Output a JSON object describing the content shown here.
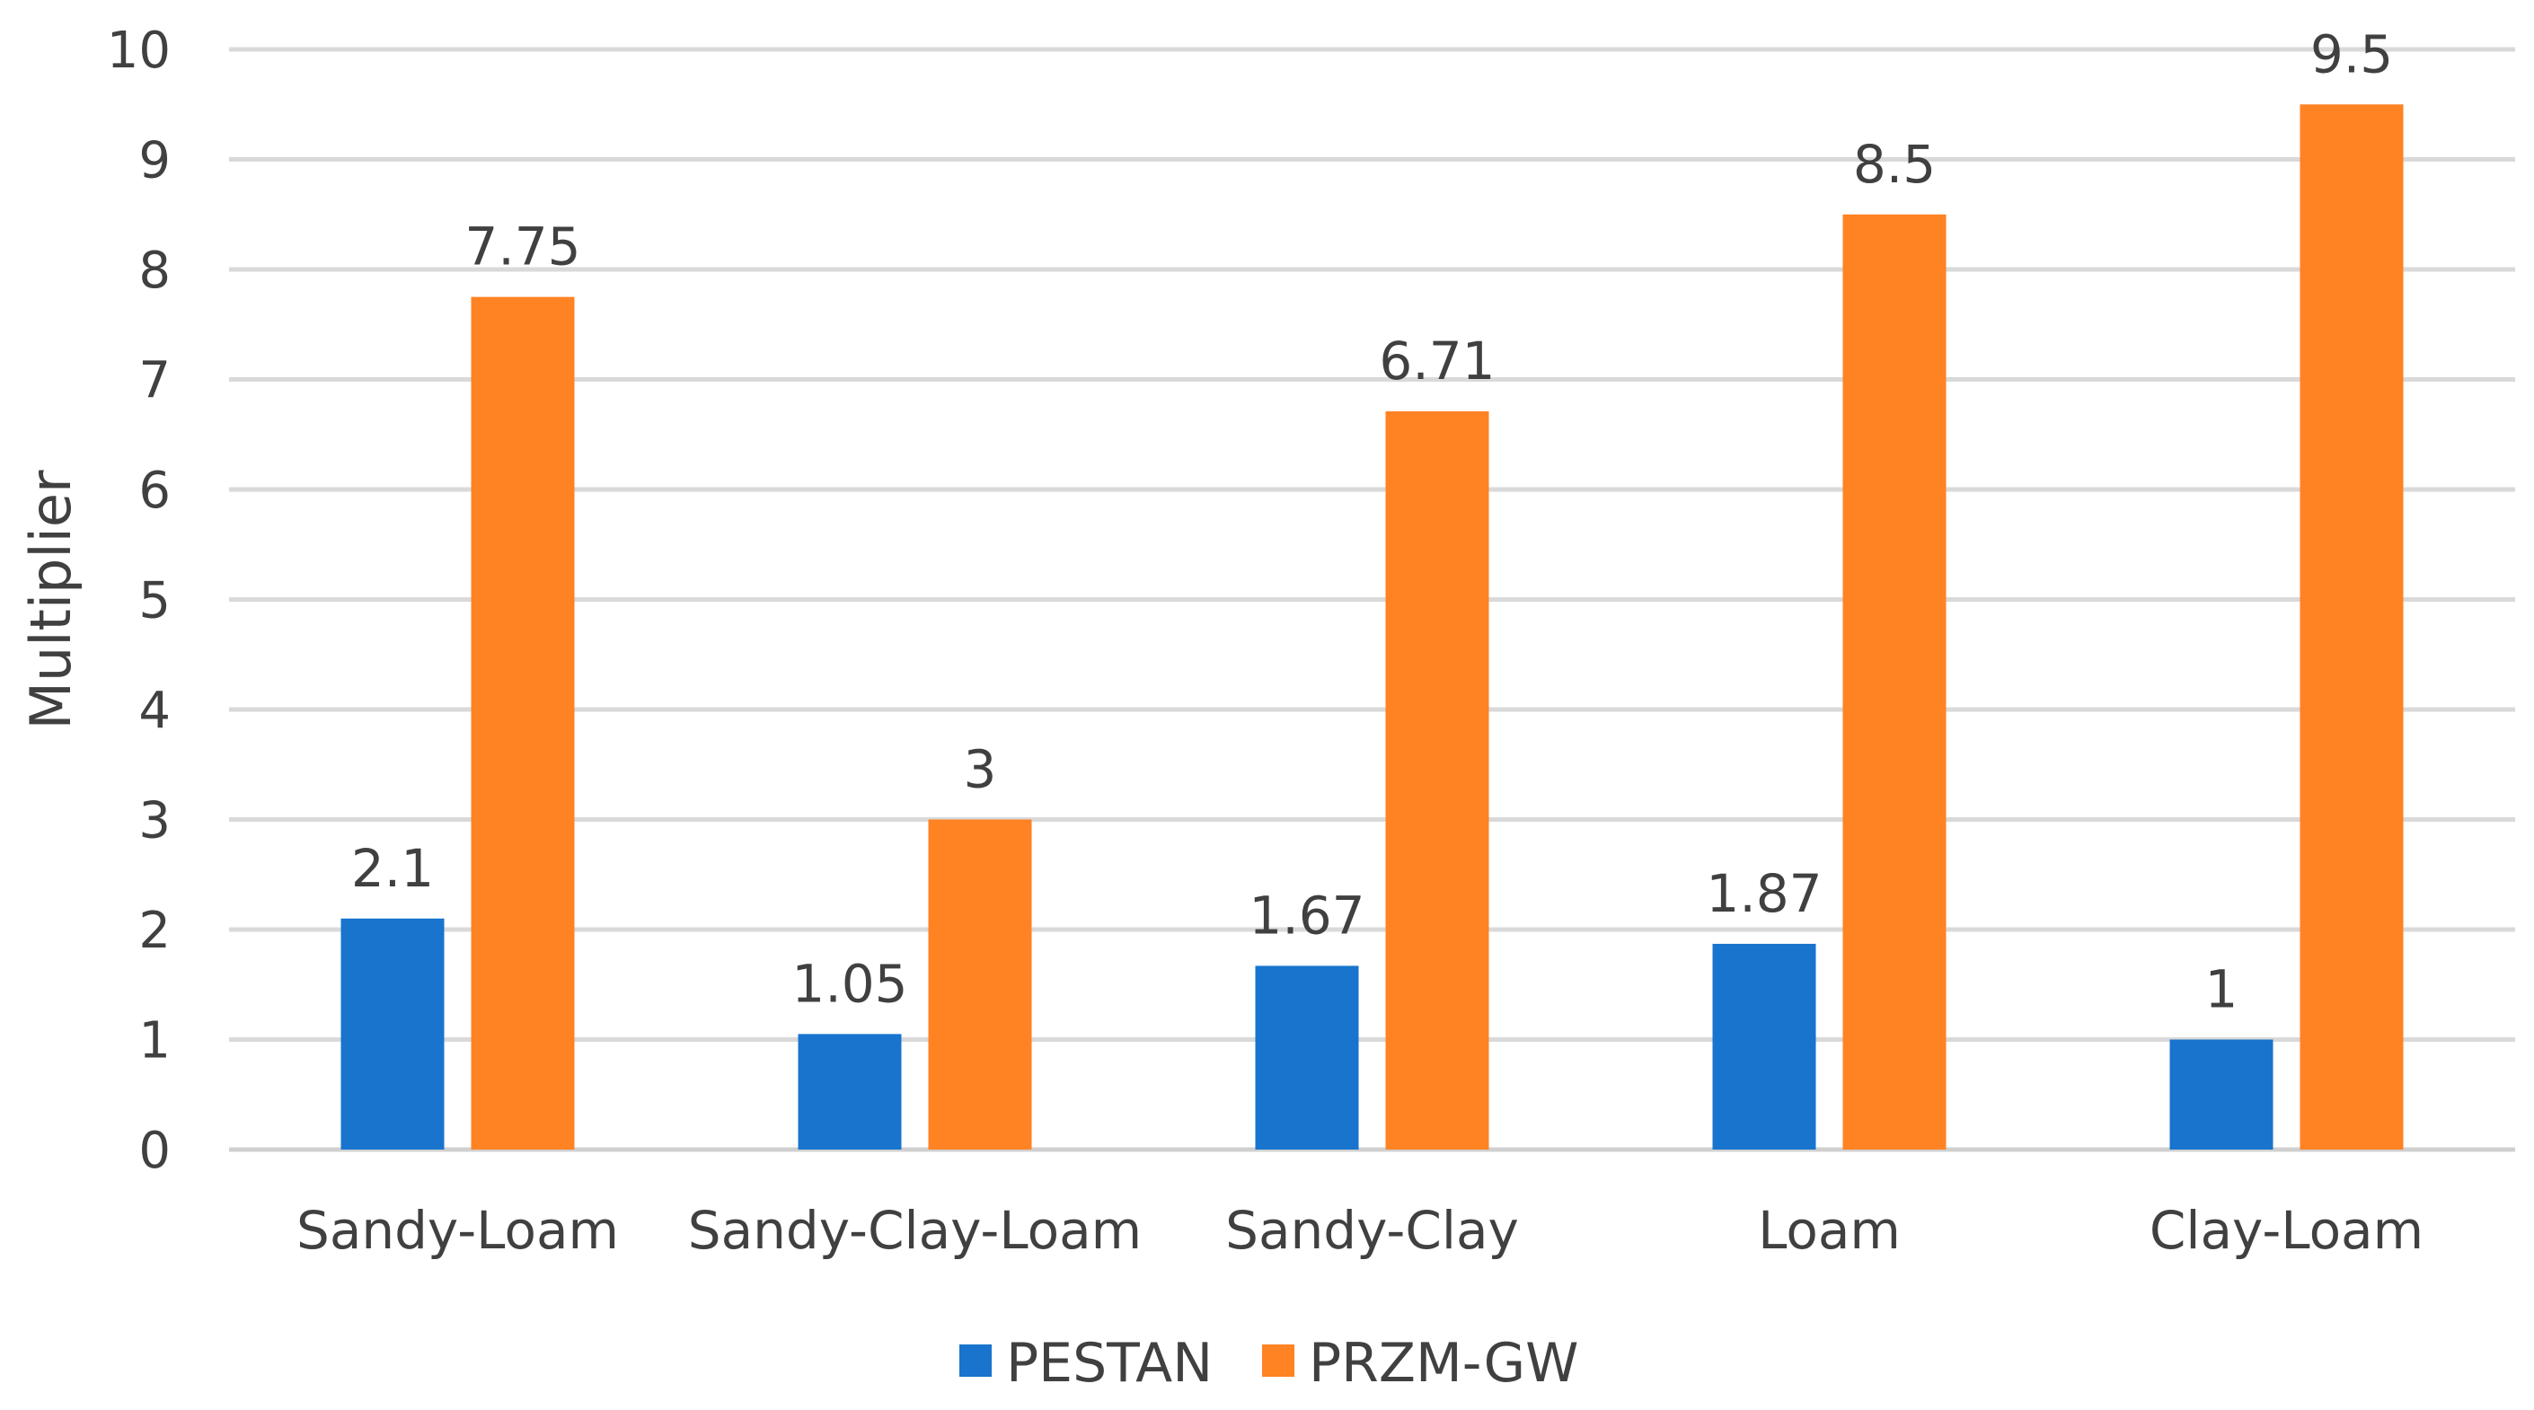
{
  "chart_data": {
    "type": "bar",
    "title": "",
    "xlabel": "",
    "ylabel": "Multiplier",
    "ylim": [
      0,
      10
    ],
    "yticks": [
      "0",
      "1",
      "2",
      "3",
      "4",
      "5",
      "6",
      "7",
      "8",
      "9",
      "10"
    ],
    "categories": [
      "Sandy-Loam",
      "Sandy-Clay-Loam",
      "Sandy-Clay",
      "Loam",
      "Clay-Loam"
    ],
    "series": [
      {
        "name": "PESTAN",
        "color": "#1874cd",
        "values": [
          2.1,
          1.05,
          1.67,
          1.87,
          1
        ],
        "labels": [
          "2.1",
          "1.05",
          "1.67",
          "1.87",
          "1"
        ]
      },
      {
        "name": "PRZM-GW",
        "color": "#ff8223",
        "values": [
          7.75,
          3,
          6.71,
          8.5,
          9.5
        ],
        "labels": [
          "7.75",
          "3",
          "6.71",
          "8.5",
          "9.5"
        ]
      }
    ],
    "grid": true,
    "legend": "bottom-center"
  }
}
